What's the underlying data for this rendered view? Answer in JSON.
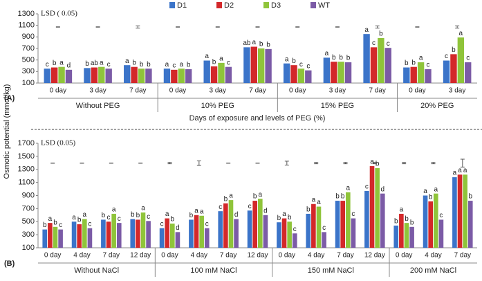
{
  "chart_data": [
    {
      "type": "bar",
      "ylabel": "Osmotic potential (mmol/kg)",
      "xlabel": "Days of exposure and levels of PEG (%)",
      "panel": "(A)",
      "lsd_label": "LSD ( 0.05)",
      "categories": [
        "0 day",
        "3 day",
        "7 day",
        "0 day",
        "3 day",
        "7 day",
        "0 day",
        "3 day",
        "7 day",
        "0 day",
        "3 day"
      ],
      "groups": [
        {
          "label": "Without  PEG",
          "span": 3
        },
        {
          "label": "10% PEG",
          "span": 3
        },
        {
          "label": "15% PEG",
          "span": 3
        },
        {
          "label": "20% PEG",
          "span": 2
        }
      ],
      "lsd_values": [
        5,
        5,
        40,
        5,
        5,
        5,
        5,
        5,
        40,
        5,
        40
      ],
      "series": [
        {
          "name": "D1",
          "color": "#3b74c9",
          "values": [
            350,
            360,
            410,
            350,
            490,
            720,
            440,
            540,
            950,
            370,
            490
          ],
          "letters": [
            "c",
            "b",
            "a",
            "a",
            "a",
            "ab",
            "a",
            "a",
            "a",
            "b",
            "c"
          ]
        },
        {
          "name": "D2",
          "color": "#d3282a",
          "values": [
            370,
            370,
            380,
            330,
            390,
            730,
            410,
            470,
            720,
            380,
            600
          ],
          "letters": [
            "b",
            "ab",
            "b",
            "c",
            "b",
            "a",
            "b",
            "b",
            "c",
            "b",
            "b"
          ]
        },
        {
          "name": "D3",
          "color": "#8fc43a",
          "values": [
            380,
            380,
            350,
            350,
            450,
            700,
            350,
            470,
            880,
            460,
            890
          ],
          "letters": [
            "a",
            "a",
            "b",
            "a",
            "a",
            "b",
            "c",
            "b",
            "b",
            "a",
            "a"
          ]
        },
        {
          "name": "WT",
          "color": "#7b5ba6",
          "values": [
            330,
            350,
            350,
            340,
            380,
            690,
            320,
            460,
            710,
            340,
            460
          ],
          "letters": [
            "d",
            "c",
            "b",
            "b",
            "c",
            "b",
            "c",
            "b",
            "c",
            "c",
            "c"
          ]
        }
      ],
      "ylim": [
        100,
        1300
      ],
      "yticks": [
        100,
        300,
        500,
        700,
        900,
        1100,
        1300
      ]
    },
    {
      "type": "bar",
      "panel": "(B)",
      "lsd_label": "LSD (0.05)",
      "categories": [
        "0 day",
        "4 day",
        "7 day",
        "12 day",
        "0 day",
        "4 day",
        "7 day",
        "12 day",
        "0 day",
        "4 day",
        "7 day",
        "12 day",
        "0 day",
        "4 day",
        "7 day"
      ],
      "groups": [
        {
          "label": "Without NaCl",
          "span": 4
        },
        {
          "label": "100 mM NaCl",
          "span": 4
        },
        {
          "label": "150 mM NaCl",
          "span": 4
        },
        {
          "label": "200 mM NaCl",
          "span": 3
        }
      ],
      "lsd_values": [
        5,
        5,
        5,
        5,
        20,
        70,
        5,
        5,
        60,
        20,
        20,
        20,
        20,
        20,
        120
      ],
      "series": [
        {
          "color": "#3b74c9",
          "values": [
            380,
            500,
            530,
            540,
            400,
            530,
            660,
            670,
            490,
            620,
            820,
            970,
            440,
            900,
            1180
          ],
          "letters": [
            "b",
            "a",
            "b",
            "b",
            "c",
            "b",
            "c",
            "c",
            "b",
            "b",
            "b",
            "c",
            "b",
            "a",
            "a"
          ]
        },
        {
          "color": "#d3282a",
          "values": [
            480,
            460,
            500,
            530,
            550,
            600,
            780,
            820,
            550,
            770,
            820,
            1350,
            620,
            810,
            1220
          ],
          "letters": [
            "a",
            "b",
            "c",
            "b",
            "a",
            "a",
            "b",
            "b",
            "a",
            "a",
            "b",
            "a",
            "a",
            "b",
            "a"
          ]
        },
        {
          "color": "#8fc43a",
          "values": [
            420,
            540,
            620,
            640,
            470,
            590,
            830,
            850,
            500,
            730,
            950,
            1320,
            480,
            930,
            1220
          ],
          "letters": [
            "b",
            "a",
            "a",
            "a",
            "b",
            "a",
            "a",
            "a",
            "b",
            "a",
            "a",
            "b",
            "b",
            "a",
            "a"
          ]
        },
        {
          "color": "#7b5ba6",
          "values": [
            380,
            400,
            480,
            510,
            340,
            400,
            540,
            600,
            320,
            340,
            550,
            930,
            420,
            530,
            820
          ],
          "letters": [
            "c",
            "c",
            "c",
            "c",
            "d",
            "c",
            "d",
            "d",
            "c",
            "c",
            "c",
            "d",
            "b",
            "c",
            "b"
          ]
        }
      ],
      "ylim": [
        100,
        1700
      ],
      "yticks": [
        100,
        300,
        500,
        700,
        900,
        1100,
        1300,
        1500,
        1700
      ]
    }
  ]
}
